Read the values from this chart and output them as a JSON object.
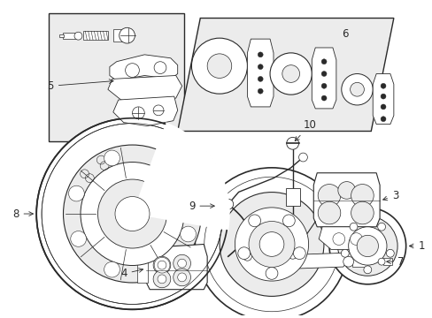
{
  "bg_color": "#ffffff",
  "line_color": "#2a2a2a",
  "fill_light": "#ececec",
  "label_color": "#111111",
  "figsize": [
    4.89,
    3.6
  ],
  "dpi": 100
}
